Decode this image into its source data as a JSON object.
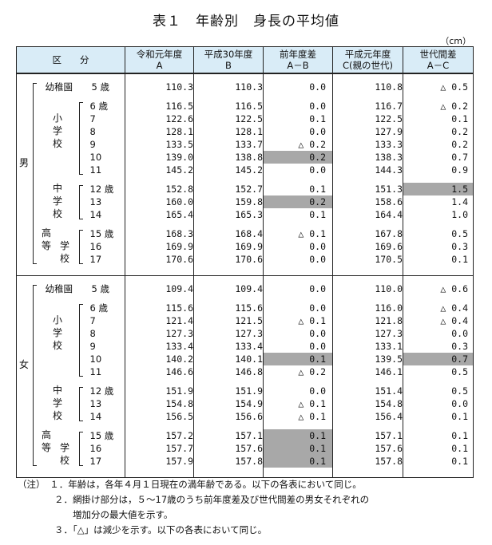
{
  "title": "表１　年齢別　身長の平均値",
  "unit": "（cm）",
  "headers": {
    "kubun": "区　　分",
    "c1": [
      "令和元年度",
      "A"
    ],
    "c2": [
      "平成30年度",
      "B"
    ],
    "c3": [
      "前年度差",
      "A－B"
    ],
    "c4": [
      "平成元年度",
      "C(親の世代)"
    ],
    "c5": [
      "世代間差",
      "A－C"
    ]
  },
  "sex": {
    "male": "男",
    "female": "女"
  },
  "school": {
    "kindergarten": "幼稚園",
    "elementary": [
      "小",
      "学",
      "校"
    ],
    "junior": [
      "中",
      "学",
      "校"
    ],
    "high": [
      "高",
      "等",
      "学",
      "校"
    ]
  },
  "male": {
    "k": [
      {
        "age": "5 歳",
        "a": "110.3",
        "b": "110.3",
        "ab": "0.0",
        "c": "110.8",
        "ac": "△ 0.5"
      }
    ],
    "e": [
      {
        "age": "6 歳",
        "a": "116.5",
        "b": "116.5",
        "ab": "0.0",
        "c": "116.7",
        "ac": "△ 0.2"
      },
      {
        "age": "7",
        "a": "122.6",
        "b": "122.5",
        "ab": "0.1",
        "c": "122.5",
        "ac": "0.1"
      },
      {
        "age": "8",
        "a": "128.1",
        "b": "128.1",
        "ab": "0.0",
        "c": "127.9",
        "ac": "0.2"
      },
      {
        "age": "9",
        "a": "133.5",
        "b": "133.7",
        "ab": "△ 0.2",
        "c": "133.3",
        "ac": "0.2"
      },
      {
        "age": "10",
        "a": "139.0",
        "b": "138.8",
        "ab": "0.2",
        "c": "138.3",
        "ac": "0.7"
      },
      {
        "age": "11",
        "a": "145.2",
        "b": "145.2",
        "ab": "0.0",
        "c": "144.3",
        "ac": "0.9"
      }
    ],
    "j": [
      {
        "age": "12 歳",
        "a": "152.8",
        "b": "152.7",
        "ab": "0.1",
        "c": "151.3",
        "ac": "1.5"
      },
      {
        "age": "13",
        "a": "160.0",
        "b": "159.8",
        "ab": "0.2",
        "c": "158.6",
        "ac": "1.4"
      },
      {
        "age": "14",
        "a": "165.4",
        "b": "165.3",
        "ab": "0.1",
        "c": "164.4",
        "ac": "1.0"
      }
    ],
    "h": [
      {
        "age": "15 歳",
        "a": "168.3",
        "b": "168.4",
        "ab": "△ 0.1",
        "c": "167.8",
        "ac": "0.5"
      },
      {
        "age": "16",
        "a": "169.9",
        "b": "169.9",
        "ab": "0.0",
        "c": "169.6",
        "ac": "0.3"
      },
      {
        "age": "17",
        "a": "170.6",
        "b": "170.6",
        "ab": "0.0",
        "c": "170.5",
        "ac": "0.1"
      }
    ]
  },
  "female": {
    "k": [
      {
        "age": "5 歳",
        "a": "109.4",
        "b": "109.4",
        "ab": "0.0",
        "c": "110.0",
        "ac": "△ 0.6"
      }
    ],
    "e": [
      {
        "age": "6 歳",
        "a": "115.6",
        "b": "115.6",
        "ab": "0.0",
        "c": "116.0",
        "ac": "△ 0.4"
      },
      {
        "age": "7",
        "a": "121.4",
        "b": "121.5",
        "ab": "△ 0.1",
        "c": "121.8",
        "ac": "△ 0.4"
      },
      {
        "age": "8",
        "a": "127.3",
        "b": "127.3",
        "ab": "0.0",
        "c": "127.3",
        "ac": "0.0"
      },
      {
        "age": "9",
        "a": "133.4",
        "b": "133.4",
        "ab": "0.0",
        "c": "133.1",
        "ac": "0.3"
      },
      {
        "age": "10",
        "a": "140.2",
        "b": "140.1",
        "ab": "0.1",
        "c": "139.5",
        "ac": "0.7"
      },
      {
        "age": "11",
        "a": "146.6",
        "b": "146.8",
        "ab": "△ 0.2",
        "c": "146.1",
        "ac": "0.5"
      }
    ],
    "j": [
      {
        "age": "12 歳",
        "a": "151.9",
        "b": "151.9",
        "ab": "0.0",
        "c": "151.4",
        "ac": "0.5"
      },
      {
        "age": "13",
        "a": "154.8",
        "b": "154.9",
        "ab": "△ 0.1",
        "c": "154.8",
        "ac": "0.0"
      },
      {
        "age": "14",
        "a": "156.5",
        "b": "156.6",
        "ab": "△ 0.1",
        "c": "156.4",
        "ac": "0.1"
      }
    ],
    "h": [
      {
        "age": "15 歳",
        "a": "157.2",
        "b": "157.1",
        "ab": "0.1",
        "c": "157.1",
        "ac": "0.1"
      },
      {
        "age": "16",
        "a": "157.7",
        "b": "157.6",
        "ab": "0.1",
        "c": "157.6",
        "ac": "0.1"
      },
      {
        "age": "17",
        "a": "157.9",
        "b": "157.8",
        "ab": "0.1",
        "c": "157.8",
        "ac": "0.1"
      }
    ]
  },
  "notes": [
    "（注）　１．年齢は，各年４月１日現在の満年齢である。以下の各表において同じ。",
    "　　　　２．網掛け部分は，５～17歳のうち前年度差及び世代間差の男女それぞれの",
    "　　　　　　増加分の最大値を示す。",
    "　　　　３．「△」は減少を示す。以下の各表において同じ。"
  ]
}
